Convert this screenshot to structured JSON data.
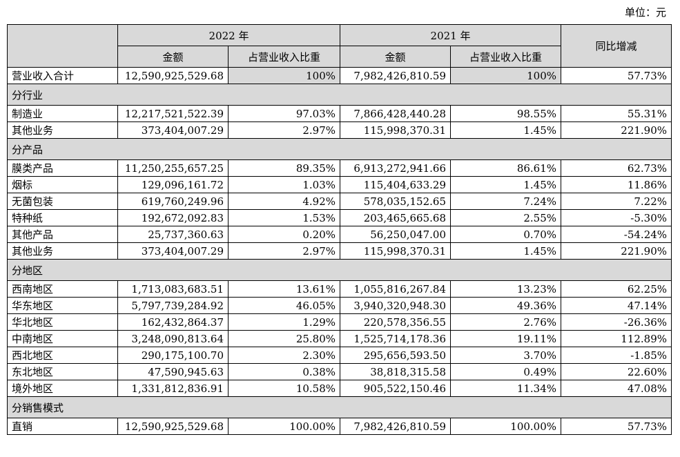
{
  "unit_label": "单位：元",
  "headers": {
    "year_2022": "2022 年",
    "year_2021": "2021 年",
    "yoy": "同比增减",
    "amount": "金额",
    "ratio": "占营业收入比重"
  },
  "total": {
    "label": "营业收入合计",
    "amt2022": "12,590,925,529.68",
    "pct2022": "100%",
    "amt2021": "7,982,426,810.59",
    "pct2021": "100%",
    "yoy": "57.73%"
  },
  "groups": [
    {
      "title": "分行业",
      "rows": [
        {
          "label": "制造业",
          "amt2022": "12,217,521,522.39",
          "pct2022": "97.03%",
          "amt2021": "7,866,428,440.28",
          "pct2021": "98.55%",
          "yoy": "55.31%"
        },
        {
          "label": "其他业务",
          "amt2022": "373,404,007.29",
          "pct2022": "2.97%",
          "amt2021": "115,998,370.31",
          "pct2021": "1.45%",
          "yoy": "221.90%"
        }
      ]
    },
    {
      "title": "分产品",
      "rows": [
        {
          "label": "膜类产品",
          "amt2022": "11,250,255,657.25",
          "pct2022": "89.35%",
          "amt2021": "6,913,272,941.66",
          "pct2021": "86.61%",
          "yoy": "62.73%"
        },
        {
          "label": "烟标",
          "amt2022": "129,096,161.72",
          "pct2022": "1.03%",
          "amt2021": "115,404,633.29",
          "pct2021": "1.45%",
          "yoy": "11.86%"
        },
        {
          "label": "无菌包装",
          "amt2022": "619,760,249.96",
          "pct2022": "4.92%",
          "amt2021": "578,035,152.65",
          "pct2021": "7.24%",
          "yoy": "7.22%"
        },
        {
          "label": "特种纸",
          "amt2022": "192,672,092.83",
          "pct2022": "1.53%",
          "amt2021": "203,465,665.68",
          "pct2021": "2.55%",
          "yoy": "-5.30%"
        },
        {
          "label": "其他产品",
          "amt2022": "25,737,360.63",
          "pct2022": "0.20%",
          "amt2021": "56,250,047.00",
          "pct2021": "0.70%",
          "yoy": "-54.24%"
        },
        {
          "label": "其他业务",
          "amt2022": "373,404,007.29",
          "pct2022": "2.97%",
          "amt2021": "115,998,370.31",
          "pct2021": "1.45%",
          "yoy": "221.90%"
        }
      ]
    },
    {
      "title": "分地区",
      "rows": [
        {
          "label": "西南地区",
          "amt2022": "1,713,083,683.51",
          "pct2022": "13.61%",
          "amt2021": "1,055,816,267.84",
          "pct2021": "13.23%",
          "yoy": "62.25%"
        },
        {
          "label": "华东地区",
          "amt2022": "5,797,739,284.92",
          "pct2022": "46.05%",
          "amt2021": "3,940,320,948.30",
          "pct2021": "49.36%",
          "yoy": "47.14%"
        },
        {
          "label": "华北地区",
          "amt2022": "162,432,864.37",
          "pct2022": "1.29%",
          "amt2021": "220,578,356.55",
          "pct2021": "2.76%",
          "yoy": "-26.36%"
        },
        {
          "label": "中南地区",
          "amt2022": "3,248,090,813.64",
          "pct2022": "25.80%",
          "amt2021": "1,525,714,178.36",
          "pct2021": "19.11%",
          "yoy": "112.89%"
        },
        {
          "label": "西北地区",
          "amt2022": "290,175,100.70",
          "pct2022": "2.30%",
          "amt2021": "295,656,593.50",
          "pct2021": "3.70%",
          "yoy": "-1.85%"
        },
        {
          "label": "东北地区",
          "amt2022": "47,590,945.63",
          "pct2022": "0.38%",
          "amt2021": "38,818,315.58",
          "pct2021": "0.49%",
          "yoy": "22.60%"
        },
        {
          "label": "境外地区",
          "amt2022": "1,331,812,836.91",
          "pct2022": "10.58%",
          "amt2021": "905,522,150.46",
          "pct2021": "11.34%",
          "yoy": "47.08%"
        }
      ]
    },
    {
      "title": "分销售模式",
      "rows": [
        {
          "label": "直销",
          "amt2022": "12,590,925,529.68",
          "pct2022": "100.00%",
          "amt2021": "7,982,426,810.59",
          "pct2021": "100.00%",
          "yoy": "57.73%"
        }
      ]
    }
  ]
}
